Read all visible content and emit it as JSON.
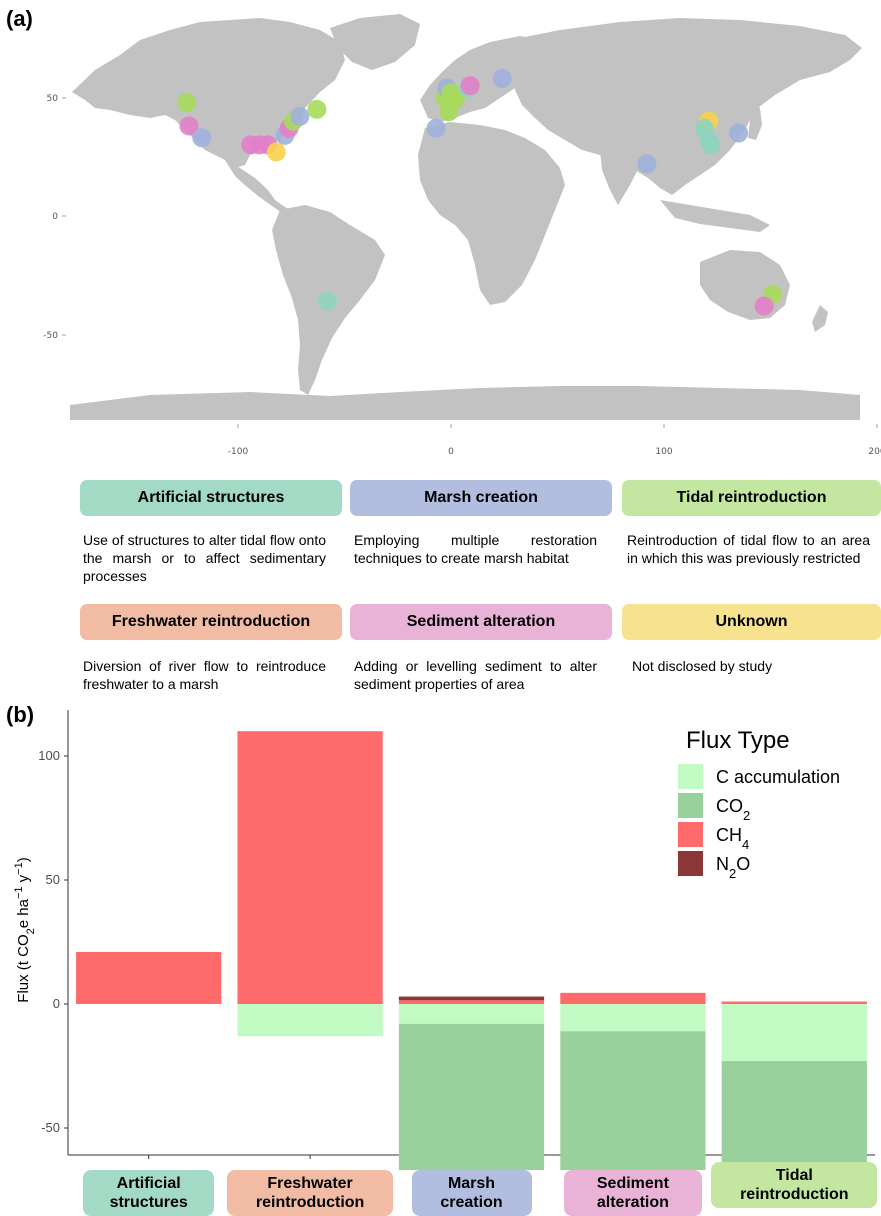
{
  "panels": {
    "a": "(a)",
    "b": "(b)"
  },
  "map": {
    "y_ticks": [
      "50",
      "0",
      "-50"
    ],
    "x_ticks": [
      "-100",
      "0",
      "100",
      "200"
    ],
    "colors": {
      "artificial": "#8fd3be",
      "marsh": "#9fb0dc",
      "tidal": "#a6dc5a",
      "freshwater": "#f2a48a",
      "sediment": "#e37ec8",
      "unknown": "#f8d34c"
    },
    "points": [
      {
        "lon": -124,
        "lat": 48,
        "type": "tidal"
      },
      {
        "lon": -123,
        "lat": 38,
        "type": "sediment"
      },
      {
        "lon": -117,
        "lat": 33,
        "type": "marsh"
      },
      {
        "lon": -94,
        "lat": 30,
        "type": "sediment"
      },
      {
        "lon": -90,
        "lat": 30,
        "type": "sediment"
      },
      {
        "lon": -86,
        "lat": 30,
        "type": "sediment"
      },
      {
        "lon": -82,
        "lat": 27,
        "type": "unknown"
      },
      {
        "lon": -78,
        "lat": 34,
        "type": "marsh"
      },
      {
        "lon": -76,
        "lat": 37,
        "type": "sediment"
      },
      {
        "lon": -74,
        "lat": 40,
        "type": "tidal"
      },
      {
        "lon": -71,
        "lat": 42,
        "type": "marsh"
      },
      {
        "lon": -63,
        "lat": 45,
        "type": "tidal"
      },
      {
        "lon": -58,
        "lat": -36,
        "type": "artificial"
      },
      {
        "lon": -7,
        "lat": 37,
        "type": "marsh"
      },
      {
        "lon": -3,
        "lat": 50,
        "type": "tidal"
      },
      {
        "lon": -2,
        "lat": 54,
        "type": "marsh"
      },
      {
        "lon": 0,
        "lat": 52,
        "type": "tidal"
      },
      {
        "lon": 2,
        "lat": 49,
        "type": "tidal"
      },
      {
        "lon": -1,
        "lat": 44,
        "type": "tidal"
      },
      {
        "lon": 8,
        "lat": 54,
        "type": "artificial"
      },
      {
        "lon": 9,
        "lat": 55,
        "type": "sediment"
      },
      {
        "lon": 24,
        "lat": 58,
        "type": "marsh"
      },
      {
        "lon": 92,
        "lat": 22,
        "type": "marsh"
      },
      {
        "lon": 121,
        "lat": 40,
        "type": "unknown"
      },
      {
        "lon": 119,
        "lat": 37,
        "type": "artificial"
      },
      {
        "lon": 121,
        "lat": 32,
        "type": "artificial"
      },
      {
        "lon": 122,
        "lat": 30,
        "type": "artificial"
      },
      {
        "lon": 135,
        "lat": 35,
        "type": "marsh"
      },
      {
        "lon": 151,
        "lat": -33,
        "type": "tidal"
      },
      {
        "lon": 147,
        "lat": -38,
        "type": "sediment"
      }
    ]
  },
  "categories": [
    {
      "key": "artificial",
      "name": "Artificial structures",
      "color": "#a2dac6",
      "desc": "Use of structures to alter tidal flow onto the marsh or to affect sedimentary processes"
    },
    {
      "key": "marsh",
      "name": "Marsh creation",
      "color": "#b2bedf",
      "desc": "Employing multiple restoration techniques to create marsh habitat"
    },
    {
      "key": "tidal",
      "name": "Tidal reintroduction",
      "color": "#c3e6a1",
      "desc": "Reintroduction of tidal flow to an area in which this was previously restricted"
    },
    {
      "key": "freshwater",
      "name": "Freshwater reintroduction",
      "color": "#f1bba4",
      "desc": "Diversion of river flow to reintroduce freshwater to a marsh"
    },
    {
      "key": "sediment",
      "name": "Sediment alteration",
      "color": "#e9b3d8",
      "desc": "Adding or levelling sediment to alter sediment properties of area"
    },
    {
      "key": "unknown",
      "name": "Unknown",
      "color": "#f7e38f",
      "desc": "Not disclosed by study"
    }
  ],
  "chart_data": {
    "type": "bar",
    "stacked": true,
    "ylabel": "Flux (t CO₂e ha⁻¹ y⁻¹)",
    "ylim": [
      -92,
      120
    ],
    "yticks": [
      -50,
      0,
      50,
      100
    ],
    "categories": [
      {
        "line1": "Artificial",
        "line2": "structures",
        "color": "#a2dac6"
      },
      {
        "line1": "Freshwater",
        "line2": "reintroduction",
        "color": "#f1bba4"
      },
      {
        "line1": "Marsh",
        "line2": "creation",
        "color": "#b2bedf"
      },
      {
        "line1": "Sediment",
        "line2": "alteration",
        "color": "#e9b3d8"
      },
      {
        "line1": "Tidal",
        "line2": "reintroduction",
        "color": "#c3e6a1"
      }
    ],
    "legend_title": "Flux Type",
    "legend_position": "top-right",
    "series": [
      {
        "name": "C accumulation",
        "color": "#c1fbc3",
        "values": [
          0,
          -13,
          -8,
          -11,
          -23
        ]
      },
      {
        "name": "CO₂",
        "color": "#98d19b",
        "values": [
          0,
          0,
          -76,
          -77,
          -51
        ]
      },
      {
        "name": "CH₄",
        "color": "#ff6b6b",
        "values": [
          21,
          110,
          1.5,
          4.5,
          1
        ]
      },
      {
        "name": "N₂O",
        "color": "#8b3737",
        "values": [
          0,
          0,
          1.5,
          0,
          0
        ]
      }
    ],
    "legend_labels": [
      {
        "base": "C accumulation",
        "sub": "",
        "tail": ""
      },
      {
        "base": "CO",
        "sub": "2",
        "tail": ""
      },
      {
        "base": "CH",
        "sub": "4",
        "tail": ""
      },
      {
        "base": "N",
        "sub": "2",
        "tail": "O"
      }
    ]
  }
}
